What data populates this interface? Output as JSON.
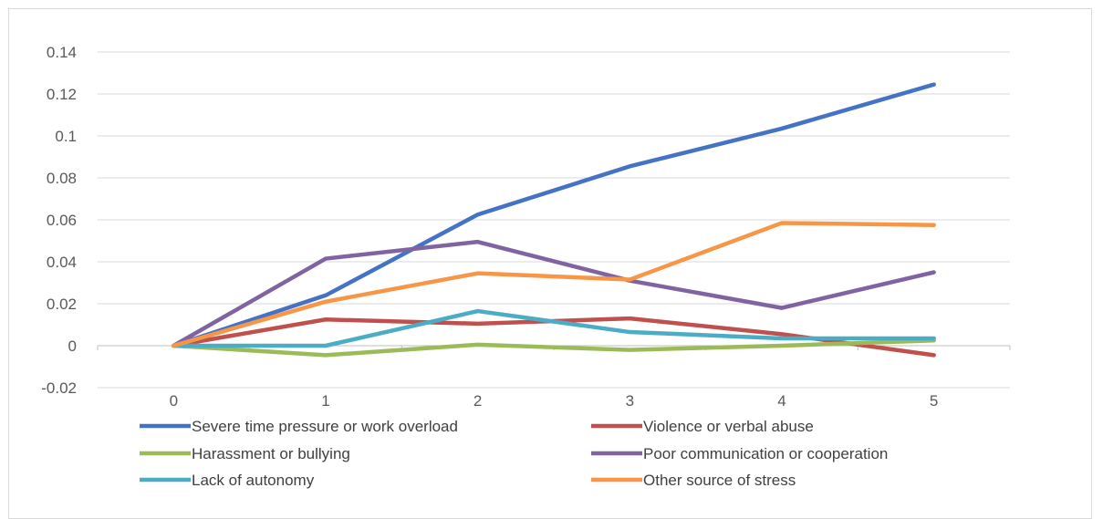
{
  "chart_data": {
    "type": "line",
    "title": "",
    "xlabel": "",
    "ylabel": "",
    "x": [
      0,
      1,
      2,
      3,
      4,
      5
    ],
    "ylim": [
      -0.02,
      0.14
    ],
    "yticks": [
      -0.02,
      0,
      0.02,
      0.04,
      0.06,
      0.08,
      0.1,
      0.12,
      0.14
    ],
    "ytick_labels": [
      "-0.02",
      "0",
      "0.02",
      "0.04",
      "0.06",
      "0.08",
      "0.1",
      "0.12",
      "0.14"
    ],
    "xtick_labels": [
      "0",
      "1",
      "2",
      "3",
      "4",
      "5"
    ],
    "grid": true,
    "legend_position": "bottom",
    "series": [
      {
        "name": "Severe time pressure or work overload",
        "color": "#4472c4",
        "values": [
          0,
          0.024,
          0.0625,
          0.0855,
          0.1035,
          0.1245
        ]
      },
      {
        "name": "Violence or verbal abuse",
        "color": "#c0504d",
        "values": [
          0,
          0.0125,
          0.0105,
          0.013,
          0.0055,
          -0.0045
        ]
      },
      {
        "name": "Harassment or bullying",
        "color": "#9bbb59",
        "values": [
          0,
          -0.0045,
          0.0005,
          -0.002,
          0.0,
          0.0025
        ]
      },
      {
        "name": "Poor  communication or cooperation",
        "color": "#8064a2",
        "values": [
          0,
          0.0415,
          0.0495,
          0.031,
          0.018,
          0.035
        ]
      },
      {
        "name": "Lack of autonomy",
        "color": "#4bacc6",
        "values": [
          0,
          0.0,
          0.0165,
          0.0065,
          0.0035,
          0.0035
        ]
      },
      {
        "name": "Other source of stress",
        "color": "#f79646",
        "values": [
          0,
          0.021,
          0.0345,
          0.0315,
          0.0585,
          0.0575
        ]
      }
    ]
  }
}
